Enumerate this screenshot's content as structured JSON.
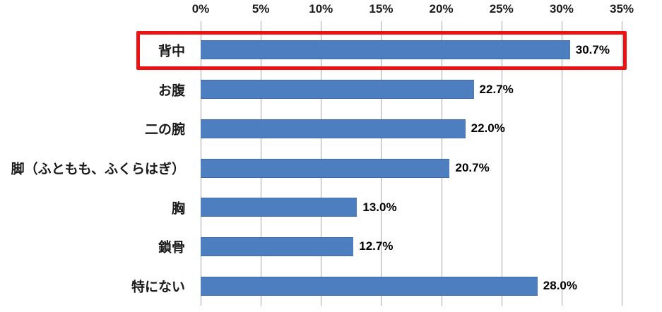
{
  "chart_data": {
    "type": "bar",
    "orientation": "horizontal",
    "title": "",
    "categories": [
      "背中",
      "お腹",
      "二の腕",
      "脚（ふともも、ふくらはぎ）",
      "胸",
      "鎖骨",
      "特にない"
    ],
    "values": [
      30.7,
      22.7,
      22.0,
      20.7,
      13.0,
      12.7,
      28.0
    ],
    "value_labels": [
      "30.7%",
      "22.7%",
      "22.0%",
      "20.7%",
      "13.0%",
      "12.7%",
      "28.0%"
    ],
    "x_ticks": [
      "0%",
      "5%",
      "10%",
      "15%",
      "20%",
      "25%",
      "30%",
      "35%"
    ],
    "xlim": [
      0,
      35
    ],
    "grid": true,
    "legend": "none",
    "bar_color": "#4d7ebf",
    "bar_border_color": "#3d6da9",
    "gridline_color": "#a6a6a6",
    "text_color": "#1a1a1a",
    "highlight": {
      "index": 0,
      "style": "red-rectangle",
      "color": "#ee1111"
    }
  }
}
